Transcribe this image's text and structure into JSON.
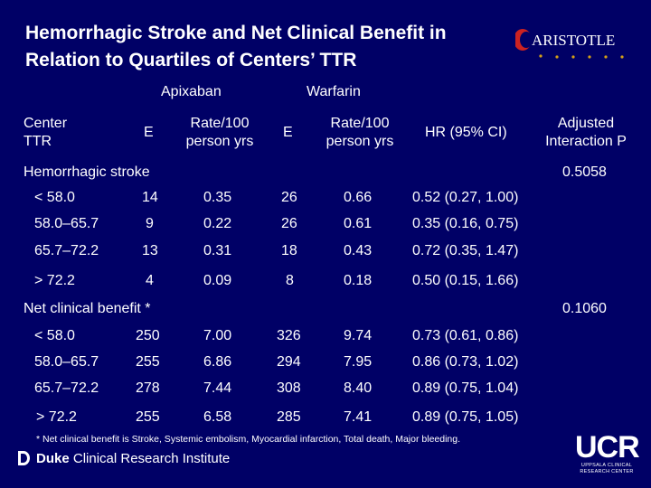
{
  "title": {
    "line1": "Hemorrhagic Stroke and Net Clinical Benefit in",
    "line2": "Relation to Quartiles of Centers’ TTR"
  },
  "logo": {
    "text": "ARISTOTLE",
    "icon": "aristotle-logo-dots"
  },
  "headers": {
    "apixaban": "Apixaban",
    "warfarin": "Warfarin",
    "center_ttr_1": "Center",
    "center_ttr_2": "TTR",
    "e_apix": "E",
    "rate_apix_1": "Rate/100",
    "rate_apix_2": "person yrs",
    "e_warf": "E",
    "rate_warf_1": "Rate/100",
    "rate_warf_2": "person yrs",
    "hr": "HR (95% CI)",
    "adj_1": "Adjusted",
    "adj_2": "Interaction P"
  },
  "sections": [
    {
      "label": "Hemorrhagic stroke",
      "p": "0.5058",
      "rows": [
        {
          "ttr": "< 58.0",
          "e_apix": "14",
          "rate_apix": "0.35",
          "e_warf": "26",
          "rate_warf": "0.66",
          "hr": "0.52 (0.27, 1.00)"
        },
        {
          "ttr": "58.0–65.7",
          "e_apix": "9",
          "rate_apix": "0.22",
          "e_warf": "26",
          "rate_warf": "0.61",
          "hr": "0.35 (0.16, 0.75)"
        },
        {
          "ttr": "65.7–72.2",
          "e_apix": "13",
          "rate_apix": "0.31",
          "e_warf": "18",
          "rate_warf": "0.43",
          "hr": "0.72 (0.35, 1.47)"
        },
        {
          "ttr": "> 72.2",
          "e_apix": "4",
          "rate_apix": "0.09",
          "e_warf": "8",
          "rate_warf": "0.18",
          "hr": "0.50 (0.15, 1.66)"
        }
      ]
    },
    {
      "label": "Net clinical benefit *",
      "p": "0.1060",
      "rows": [
        {
          "ttr": "< 58.0",
          "e_apix": "250",
          "rate_apix": "7.00",
          "e_warf": "326",
          "rate_warf": "9.74",
          "hr": "0.73 (0.61, 0.86)"
        },
        {
          "ttr": "58.0–65.7",
          "e_apix": "255",
          "rate_apix": "6.86",
          "e_warf": "294",
          "rate_warf": "7.95",
          "hr": "0.86 (0.73, 1.02)"
        },
        {
          "ttr": "65.7–72.2",
          "e_apix": "278",
          "rate_apix": "7.44",
          "e_warf": "308",
          "rate_warf": "8.40",
          "hr": "0.89 (0.75, 1.04)"
        },
        {
          "ttr": "> 72.2",
          "e_apix": "255",
          "rate_apix": "6.58",
          "e_warf": "285",
          "rate_warf": "7.41",
          "hr": "0.89 (0.75, 1.05)"
        }
      ]
    }
  ],
  "footnote": "* Net clinical benefit is Stroke, Systemic embolism, Myocardial infarction, Total death, Major bleeding.",
  "duke": {
    "bold": "Duke",
    "rest": " Clinical Research Institute",
    "icon": "duke-d-icon"
  },
  "ucr": {
    "big": "UCR",
    "small_1": "UPPSALA CLINICAL",
    "small_2": "RESEARCH CENTER"
  },
  "colors": {
    "background": "#000066",
    "text": "#ffffff",
    "logo_red": "#cc2222",
    "logo_dots": "#d4a017"
  }
}
